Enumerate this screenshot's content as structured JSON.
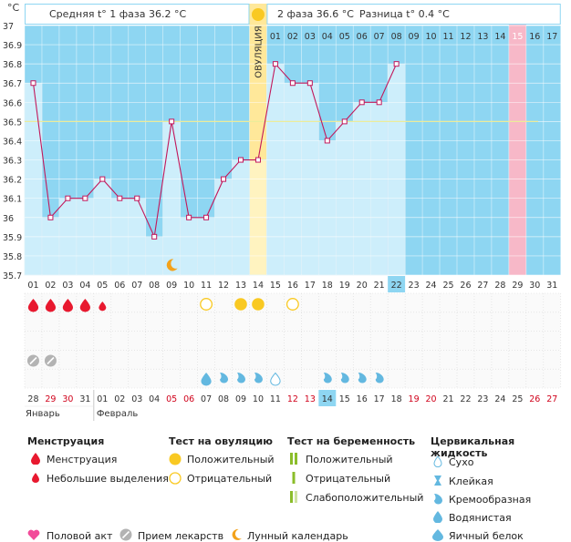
{
  "chart_data": {
    "type": "bar",
    "unit_label": "°C",
    "ylim": [
      35.7,
      37.0
    ],
    "y_ticks": [
      "37",
      "36.9",
      "36.8",
      "36.7",
      "36.6",
      "36.5",
      "36.4",
      "36.3",
      "36.2",
      "36.1",
      "36",
      "35.9",
      "35.8",
      "35.7"
    ],
    "coverline": 36.5,
    "cycle_days": [
      "01",
      "02",
      "03",
      "04",
      "05",
      "06",
      "07",
      "08",
      "09",
      "10",
      "11",
      "12",
      "13",
      "14",
      "15",
      "16",
      "17",
      "18",
      "19",
      "20",
      "21",
      "22",
      "23",
      "24",
      "25",
      "26",
      "27",
      "28",
      "29",
      "30",
      "31"
    ],
    "header_days": [
      "01",
      "02",
      "03",
      "04",
      "05",
      "06",
      "07",
      "08",
      "09",
      "10",
      "11",
      "12",
      "13",
      "14",
      "15",
      "16",
      "17"
    ],
    "temperatures": [
      36.7,
      36.0,
      36.1,
      36.1,
      36.2,
      36.1,
      36.1,
      35.9,
      36.5,
      36.0,
      36.0,
      36.2,
      36.3,
      36.3,
      36.8,
      36.7,
      36.7,
      36.4,
      36.5,
      36.6,
      36.6,
      36.8,
      null,
      null,
      null,
      null,
      null,
      null,
      null,
      null,
      null
    ],
    "highlight_day_index": 21,
    "pink_header_index": 14,
    "ovulation_day_index": 13,
    "ovulation_label": "ОВУЛЯЦИЯ",
    "phase1_text": "Средняя t° 1 фаза 36.2 °C",
    "phase2_text": "2 фаза 36.6 °C",
    "diff_text": "Разница t° 0.4 °C",
    "calendar_dates": [
      "28",
      "29",
      "30",
      "31",
      "01",
      "02",
      "03",
      "04",
      "05",
      "06",
      "07",
      "08",
      "09",
      "10",
      "11",
      "12",
      "13",
      "14",
      "15",
      "16",
      "17",
      "18",
      "19",
      "20",
      "21",
      "22",
      "23",
      "24",
      "25",
      "26",
      "27"
    ],
    "calendar_red": [
      1,
      2,
      8,
      9,
      15,
      16,
      22,
      23,
      29,
      30
    ],
    "calendar_highlight_index": 17,
    "months": [
      {
        "name": "Январь",
        "start_index": 0
      },
      {
        "name": "Февраль",
        "start_index": 4
      }
    ],
    "menstruation_big": [
      0,
      1,
      2,
      3
    ],
    "menstruation_small": [
      4
    ],
    "ovulation_test_negative": [
      10,
      15
    ],
    "ovulation_test_positive": [
      12,
      13
    ],
    "medication_days": [
      0,
      1
    ],
    "moon_day_index": 8,
    "fluid": [
      {
        "i": 10,
        "t": "water"
      },
      {
        "i": 11,
        "t": "cream"
      },
      {
        "i": 12,
        "t": "cream"
      },
      {
        "i": 13,
        "t": "cream"
      },
      {
        "i": 14,
        "t": "dry"
      },
      {
        "i": 17,
        "t": "cream"
      },
      {
        "i": 18,
        "t": "cream"
      },
      {
        "i": 19,
        "t": "cream"
      },
      {
        "i": 20,
        "t": "cream"
      }
    ]
  },
  "legend": {
    "menstruation": {
      "title": "Менструация",
      "big": "Менструация",
      "small": "Небольшие выделения"
    },
    "ovulation_test": {
      "title": "Тест на овуляцию",
      "positive": "Положительный",
      "negative": "Отрицательный"
    },
    "pregnancy_test": {
      "title": "Тест на беременность",
      "positive": "Положительный",
      "negative": "Отрицательный",
      "weak": "Слабоположительный"
    },
    "cervical_fluid": {
      "title": "Цервикальная жидкость",
      "dry": "Сухо",
      "sticky": "Клейкая",
      "creamy": "Кремообразная",
      "watery": "Водянистая",
      "eggwhite": "Яичный белок"
    },
    "bottom": {
      "intercourse": "Половой акт",
      "medication": "Прием лекарств",
      "lunar": "Лунный календарь"
    }
  },
  "colors": {
    "bar": "#cdeefb",
    "bar_stroke": "#b7dff0",
    "bg_blue": "#8ed6f2",
    "grid": "#ffffff",
    "line": "#c2185b",
    "coverline": "#ecec9a",
    "ovulation": "#ffe89a",
    "ovulation_low": "#fff3c0",
    "pink": "#f7b8c8",
    "red": "#e8192f",
    "yellow": "#f9c922",
    "moon": "#f3a21b",
    "fluid": "#63b8e0"
  }
}
